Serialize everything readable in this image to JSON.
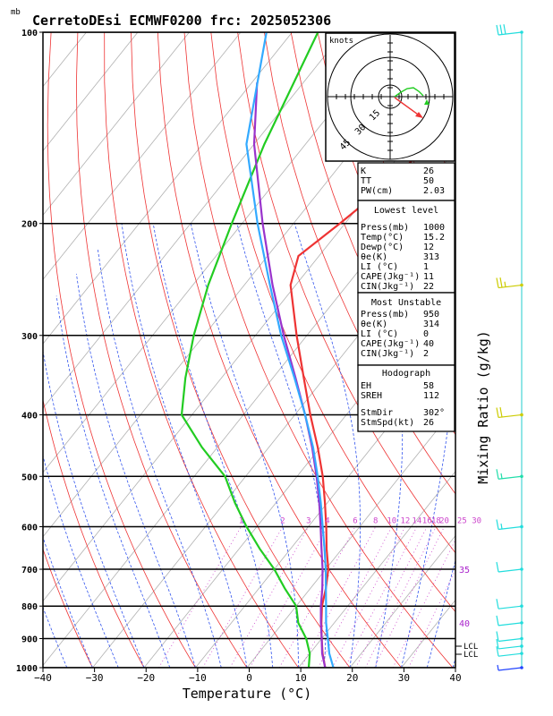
{
  "chart_data": {
    "type": "line",
    "title": "CerretoDEsi ECMWF0200  frc: 2025052306",
    "pressure_unit": "mb",
    "xlabel": "Temperature (°C)",
    "right_label": "Mixing Ratio (g/kg)",
    "xlim": [
      -40,
      40
    ],
    "ylim": [
      1000,
      100
    ],
    "x_ticks": [
      "−40",
      "−30",
      "−20",
      "−10",
      "0",
      "10",
      "20",
      "30",
      "40"
    ],
    "pressure_ticks": [
      "100",
      "200",
      "300",
      "400",
      "500",
      "600",
      "700",
      "800",
      "900",
      "1000"
    ],
    "mixing_ratio_labels": [
      "1",
      "2",
      "3",
      "4",
      "6",
      "8",
      "10",
      "12",
      "14",
      "16",
      "18",
      "20",
      "25",
      "30"
    ],
    "theta_labels": [
      "35",
      "40"
    ],
    "lcl_labels": [
      "LCL",
      "LCL"
    ],
    "series": [
      {
        "role": "temperature",
        "color": "#ee3333",
        "points": [
          [
            1000,
            15.2
          ],
          [
            950,
            12.5
          ],
          [
            900,
            10
          ],
          [
            850,
            7.5
          ],
          [
            800,
            5
          ],
          [
            750,
            3
          ],
          [
            700,
            0.5
          ],
          [
            650,
            -3
          ],
          [
            600,
            -6.5
          ],
          [
            550,
            -10.5
          ],
          [
            500,
            -15
          ],
          [
            450,
            -20.5
          ],
          [
            400,
            -27
          ],
          [
            350,
            -34
          ],
          [
            300,
            -42
          ],
          [
            250,
            -51
          ],
          [
            225,
            -54
          ],
          [
            200,
            -51
          ],
          [
            175,
            -48
          ],
          [
            150,
            -46
          ],
          [
            125,
            -43
          ],
          [
            100,
            -39
          ]
        ]
      },
      {
        "role": "dewpoint",
        "color": "#22cc22",
        "points": [
          [
            1000,
            12
          ],
          [
            950,
            10
          ],
          [
            900,
            7
          ],
          [
            850,
            3
          ],
          [
            800,
            0
          ],
          [
            750,
            -5
          ],
          [
            700,
            -10
          ],
          [
            650,
            -16
          ],
          [
            600,
            -22
          ],
          [
            550,
            -28
          ],
          [
            500,
            -34
          ],
          [
            450,
            -43
          ],
          [
            400,
            -52
          ],
          [
            350,
            -57
          ],
          [
            300,
            -62
          ],
          [
            250,
            -67
          ],
          [
            200,
            -72
          ],
          [
            150,
            -78
          ],
          [
            100,
            -85
          ]
        ]
      },
      {
        "role": "parcel_path",
        "color": "#9933cc",
        "points": [
          [
            1000,
            15.2
          ],
          [
            950,
            12.4
          ],
          [
            900,
            10
          ],
          [
            850,
            7.4
          ],
          [
            800,
            4.8
          ],
          [
            750,
            2.3
          ],
          [
            700,
            -0.6
          ],
          [
            650,
            -4
          ],
          [
            600,
            -7.6
          ],
          [
            550,
            -11.6
          ],
          [
            500,
            -16.2
          ],
          [
            450,
            -21.6
          ],
          [
            400,
            -28
          ],
          [
            350,
            -35.6
          ],
          [
            300,
            -44.5
          ],
          [
            250,
            -54.5
          ],
          [
            200,
            -66
          ],
          [
            150,
            -80
          ],
          [
            120,
            -89
          ]
        ]
      },
      {
        "role": "virtual_temperature",
        "color": "#33aaff",
        "points": [
          [
            1000,
            16.8
          ],
          [
            950,
            13.8
          ],
          [
            900,
            11.2
          ],
          [
            850,
            8.4
          ],
          [
            800,
            5.8
          ],
          [
            750,
            3
          ],
          [
            700,
            0
          ],
          [
            650,
            -3.4
          ],
          [
            600,
            -7.2
          ],
          [
            550,
            -11.3
          ],
          [
            500,
            -16
          ],
          [
            450,
            -21.4
          ],
          [
            400,
            -28
          ],
          [
            350,
            -35.8
          ],
          [
            300,
            -45
          ],
          [
            250,
            -55
          ],
          [
            200,
            -67
          ],
          [
            150,
            -81.5
          ],
          [
            100,
            -95
          ]
        ]
      }
    ],
    "hodograph": {
      "unit": "knots",
      "ring_labels": [
        "15",
        "30",
        "45"
      ],
      "storm_motion_arrow": {
        "dir_deg": 302,
        "speed_kt": 26,
        "color": "#ee3333"
      }
    },
    "stats": {
      "top": [
        [
          "K",
          "26"
        ],
        [
          "TT",
          "50"
        ],
        [
          "PW(cm)",
          "2.03"
        ]
      ],
      "lowest_level_title": "Lowest level",
      "lowest_level": [
        [
          "Press(mb)",
          "1000"
        ],
        [
          "Temp(°C)",
          "15.2"
        ],
        [
          "Dewp(°C)",
          "12"
        ],
        [
          "θe(K)",
          "313"
        ],
        [
          "LI (°C)",
          "1"
        ],
        [
          "CAPE(Jkg⁻¹)",
          "11"
        ],
        [
          "CIN(Jkg⁻¹)",
          "22"
        ]
      ],
      "most_unstable_title": "Most Unstable",
      "most_unstable": [
        [
          "Press(mb)",
          "950"
        ],
        [
          "θe(K)",
          "314"
        ],
        [
          "LI (°C)",
          "0"
        ],
        [
          "CAPE(Jkg⁻¹)",
          "40"
        ],
        [
          "CIN(Jkg⁻¹)",
          "2"
        ]
      ],
      "hodograph_title": "Hodograph",
      "hodograph_stats": [
        [
          "EH",
          "58"
        ],
        [
          "SREH",
          "112"
        ],
        [
          "StmDir",
          "302°"
        ],
        [
          "StmSpd(kt)",
          "26"
        ]
      ]
    },
    "wind_barbs": [
      {
        "p": 100,
        "dir": 280,
        "kt": 30,
        "color": "#22dddd"
      },
      {
        "p": 250,
        "dir": 290,
        "kt": 25,
        "color": "#cccc00"
      },
      {
        "p": 400,
        "dir": 300,
        "kt": 20,
        "color": "#cccc00"
      },
      {
        "p": 500,
        "dir": 290,
        "kt": 15,
        "color": "#22ddaa"
      },
      {
        "p": 600,
        "dir": 280,
        "kt": 15,
        "color": "#22dddd"
      },
      {
        "p": 700,
        "dir": 260,
        "kt": 10,
        "color": "#22dddd"
      },
      {
        "p": 800,
        "dir": 250,
        "kt": 10,
        "color": "#22dddd"
      },
      {
        "p": 850,
        "dir": 240,
        "kt": 10,
        "color": "#22dddd"
      },
      {
        "p": 900,
        "dir": 220,
        "kt": 10,
        "color": "#22dddd"
      },
      {
        "p": 925,
        "dir": 200,
        "kt": 10,
        "color": "#22dddd"
      },
      {
        "p": 950,
        "dir": 180,
        "kt": 10,
        "color": "#22dddd"
      },
      {
        "p": 1000,
        "dir": 160,
        "kt": 5,
        "color": "#2244ff"
      }
    ],
    "colors": {
      "isotherm": "#b0b0b0",
      "dry_adiabat": "#ee3333",
      "moist_adiabat": "#3355ee",
      "mixing_ratio": "#cc44cc",
      "grid": "#000000"
    }
  }
}
